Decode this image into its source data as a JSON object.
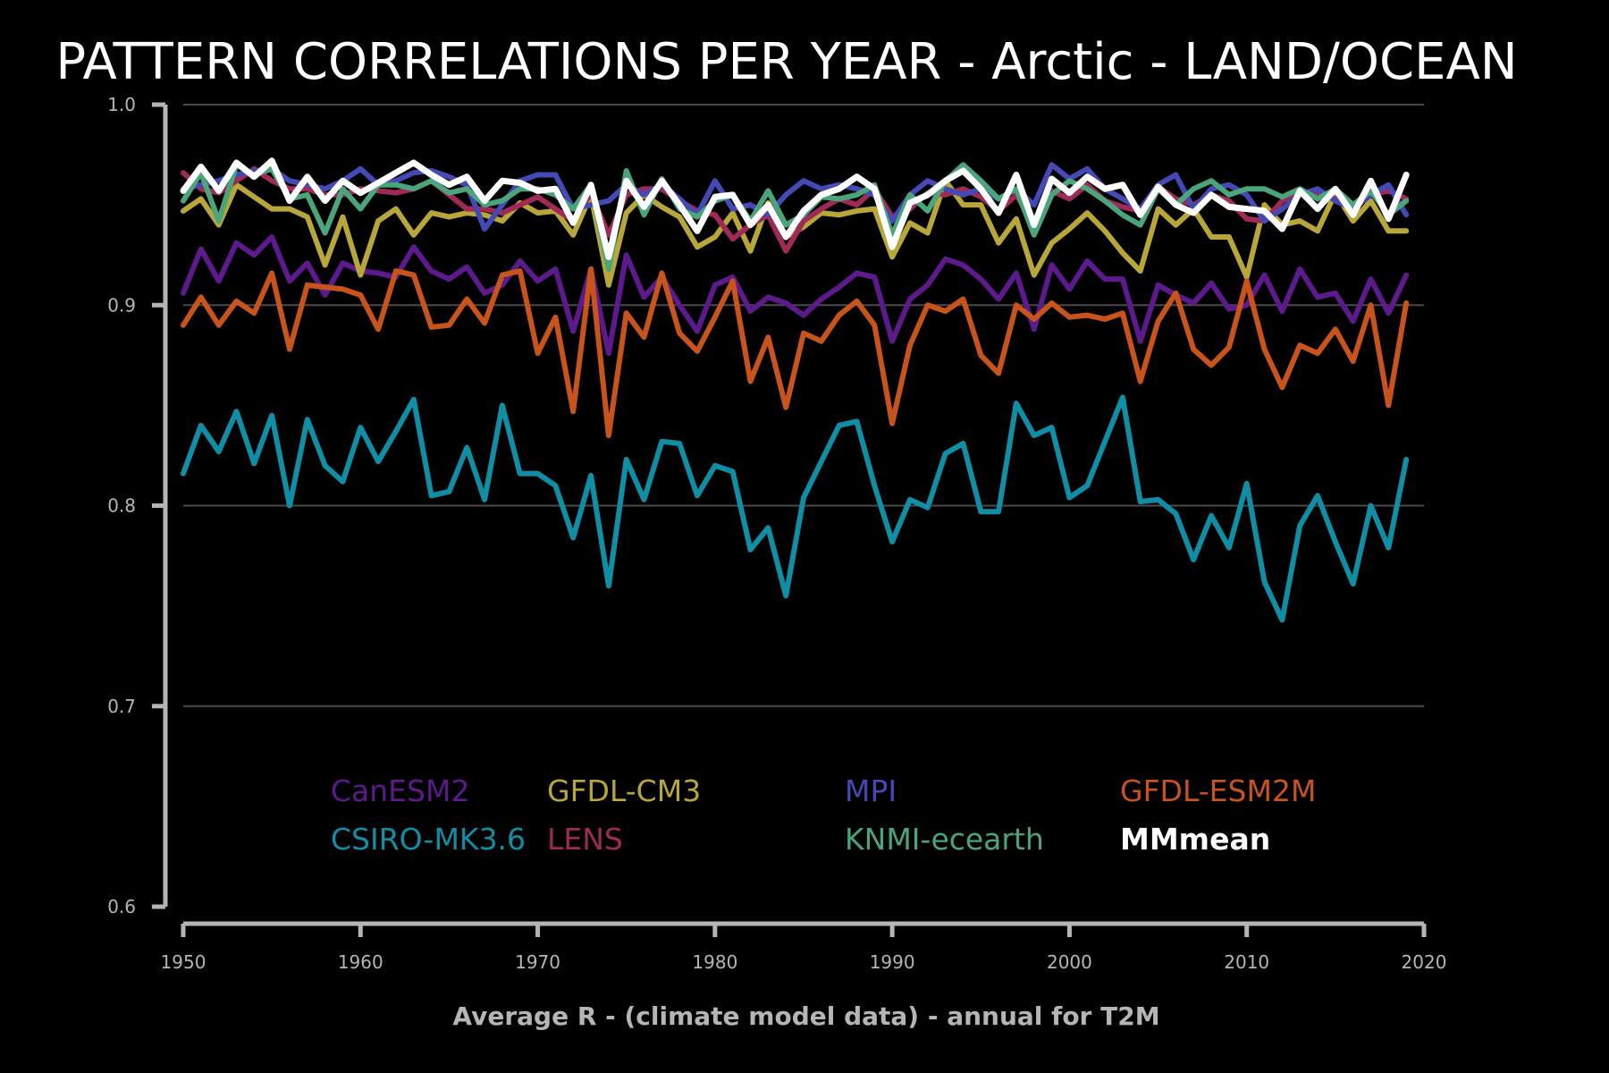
{
  "chart_data": {
    "type": "line",
    "title": "PATTERN CORRELATIONS PER YEAR - Arctic - LAND/OCEAN",
    "xlabel": "Average R - (climate model data) - annual for T2M",
    "ylabel": "",
    "xlim": [
      1950,
      2020
    ],
    "ylim": [
      0.6,
      1.0
    ],
    "xticks": [
      1950,
      1960,
      1970,
      1980,
      1990,
      2000,
      2010,
      2020
    ],
    "xtick_labels": [
      "1950",
      "1960",
      "1970",
      "1980",
      "1990",
      "2000",
      "2010",
      "2020"
    ],
    "yticks": [
      0.6,
      0.7,
      0.8,
      0.9,
      1.0
    ],
    "ytick_labels": [
      "0.6",
      "0.7",
      "0.8",
      "0.9",
      "1.0"
    ],
    "grid": "horizontal",
    "background": "#000000",
    "legend_position": "lower-center",
    "legend_columns": 4,
    "x_start": 1950,
    "series": [
      {
        "name": "CanESM2",
        "color": "#5c1a8c",
        "values": [
          0.906,
          0.928,
          0.912,
          0.931,
          0.925,
          0.934,
          0.912,
          0.921,
          0.905,
          0.921,
          0.917,
          0.916,
          0.914,
          0.929,
          0.917,
          0.913,
          0.919,
          0.906,
          0.91,
          0.922,
          0.912,
          0.918,
          0.887,
          0.918,
          0.876,
          0.925,
          0.904,
          0.914,
          0.9,
          0.887,
          0.91,
          0.914,
          0.897,
          0.904,
          0.901,
          0.895,
          0.903,
          0.909,
          0.916,
          0.914,
          0.882,
          0.903,
          0.91,
          0.923,
          0.92,
          0.913,
          0.903,
          0.916,
          0.888,
          0.92,
          0.908,
          0.922,
          0.913,
          0.913,
          0.882,
          0.91,
          0.905,
          0.901,
          0.911,
          0.898,
          0.9,
          0.915,
          0.897,
          0.918,
          0.904,
          0.906,
          0.892,
          0.913,
          0.896,
          0.915
        ]
      },
      {
        "name": "CSIRO-MK3.6",
        "color": "#0e8fa5",
        "values": [
          0.816,
          0.84,
          0.827,
          0.847,
          0.821,
          0.845,
          0.8,
          0.843,
          0.82,
          0.812,
          0.839,
          0.822,
          0.837,
          0.853,
          0.805,
          0.807,
          0.829,
          0.803,
          0.85,
          0.816,
          0.816,
          0.81,
          0.784,
          0.815,
          0.76,
          0.823,
          0.803,
          0.832,
          0.831,
          0.805,
          0.82,
          0.817,
          0.778,
          0.789,
          0.755,
          0.804,
          0.822,
          0.84,
          0.842,
          0.81,
          0.782,
          0.803,
          0.799,
          0.826,
          0.831,
          0.797,
          0.797,
          0.851,
          0.835,
          0.839,
          0.804,
          0.81,
          0.832,
          0.854,
          0.802,
          0.803,
          0.796,
          0.773,
          0.795,
          0.779,
          0.811,
          0.762,
          0.743,
          0.79,
          0.805,
          0.782,
          0.761,
          0.8,
          0.779,
          0.823
        ]
      },
      {
        "name": "GFDL-CM3",
        "color": "#b8a738",
        "values": [
          0.947,
          0.953,
          0.94,
          0.96,
          0.954,
          0.948,
          0.948,
          0.944,
          0.92,
          0.944,
          0.915,
          0.942,
          0.948,
          0.935,
          0.946,
          0.944,
          0.946,
          0.945,
          0.942,
          0.951,
          0.946,
          0.947,
          0.935,
          0.955,
          0.91,
          0.946,
          0.955,
          0.949,
          0.944,
          0.929,
          0.934,
          0.946,
          0.927,
          0.951,
          0.934,
          0.939,
          0.946,
          0.945,
          0.947,
          0.948,
          0.924,
          0.941,
          0.936,
          0.962,
          0.95,
          0.95,
          0.931,
          0.943,
          0.915,
          0.931,
          0.938,
          0.946,
          0.937,
          0.926,
          0.917,
          0.948,
          0.94,
          0.948,
          0.934,
          0.934,
          0.914,
          0.95,
          0.94,
          0.942,
          0.937,
          0.956,
          0.942,
          0.952,
          0.937,
          0.937
        ]
      },
      {
        "name": "LENS",
        "color": "#9e2a55",
        "values": [
          0.966,
          0.958,
          0.956,
          0.962,
          0.968,
          0.962,
          0.958,
          0.958,
          0.955,
          0.955,
          0.958,
          0.957,
          0.956,
          0.958,
          0.962,
          0.955,
          0.948,
          0.948,
          0.946,
          0.95,
          0.954,
          0.948,
          0.942,
          0.956,
          0.935,
          0.955,
          0.958,
          0.958,
          0.952,
          0.947,
          0.945,
          0.933,
          0.94,
          0.945,
          0.927,
          0.942,
          0.948,
          0.953,
          0.95,
          0.958,
          0.944,
          0.948,
          0.956,
          0.955,
          0.958,
          0.954,
          0.947,
          0.955,
          0.94,
          0.957,
          0.953,
          0.96,
          0.952,
          0.949,
          0.947,
          0.959,
          0.953,
          0.95,
          0.955,
          0.952,
          0.943,
          0.942,
          0.952,
          0.956,
          0.956,
          0.953,
          0.95,
          0.955,
          0.957,
          0.953
        ]
      },
      {
        "name": "MPI",
        "color": "#4549b5",
        "values": [
          0.958,
          0.96,
          0.962,
          0.965,
          0.967,
          0.968,
          0.962,
          0.96,
          0.958,
          0.962,
          0.968,
          0.96,
          0.962,
          0.966,
          0.967,
          0.964,
          0.96,
          0.938,
          0.95,
          0.962,
          0.965,
          0.965,
          0.948,
          0.95,
          0.952,
          0.96,
          0.955,
          0.96,
          0.953,
          0.945,
          0.962,
          0.948,
          0.95,
          0.945,
          0.955,
          0.962,
          0.958,
          0.96,
          0.958,
          0.955,
          0.942,
          0.955,
          0.962,
          0.958,
          0.955,
          0.958,
          0.953,
          0.958,
          0.95,
          0.97,
          0.963,
          0.968,
          0.958,
          0.953,
          0.948,
          0.96,
          0.965,
          0.948,
          0.958,
          0.96,
          0.955,
          0.942,
          0.948,
          0.955,
          0.958,
          0.952,
          0.948,
          0.955,
          0.96,
          0.945
        ]
      },
      {
        "name": "KNMI-ecearth",
        "color": "#4aa57b",
        "values": [
          0.952,
          0.966,
          0.942,
          0.97,
          0.965,
          0.968,
          0.953,
          0.955,
          0.936,
          0.958,
          0.948,
          0.96,
          0.96,
          0.958,
          0.962,
          0.956,
          0.958,
          0.95,
          0.952,
          0.958,
          0.958,
          0.955,
          0.948,
          0.96,
          0.918,
          0.967,
          0.945,
          0.963,
          0.948,
          0.944,
          0.952,
          0.955,
          0.942,
          0.957,
          0.94,
          0.945,
          0.954,
          0.953,
          0.955,
          0.96,
          0.935,
          0.955,
          0.947,
          0.962,
          0.97,
          0.962,
          0.953,
          0.958,
          0.935,
          0.955,
          0.962,
          0.958,
          0.952,
          0.945,
          0.94,
          0.958,
          0.95,
          0.958,
          0.962,
          0.955,
          0.958,
          0.958,
          0.954,
          0.958,
          0.953,
          0.958,
          0.95,
          0.957,
          0.945,
          0.952
        ]
      },
      {
        "name": "GFDL-ESM2M",
        "color": "#c8541c",
        "values": [
          0.89,
          0.904,
          0.89,
          0.902,
          0.896,
          0.916,
          0.878,
          0.91,
          0.909,
          0.908,
          0.905,
          0.888,
          0.917,
          0.915,
          0.889,
          0.89,
          0.903,
          0.891,
          0.915,
          0.917,
          0.876,
          0.894,
          0.847,
          0.918,
          0.835,
          0.896,
          0.884,
          0.916,
          0.886,
          0.877,
          0.894,
          0.912,
          0.862,
          0.884,
          0.849,
          0.886,
          0.882,
          0.895,
          0.902,
          0.89,
          0.841,
          0.88,
          0.9,
          0.897,
          0.903,
          0.875,
          0.866,
          0.9,
          0.893,
          0.901,
          0.894,
          0.895,
          0.893,
          0.896,
          0.862,
          0.892,
          0.906,
          0.878,
          0.87,
          0.879,
          0.912,
          0.878,
          0.859,
          0.88,
          0.876,
          0.888,
          0.872,
          0.9,
          0.85,
          0.901
        ]
      },
      {
        "name": "MMmean",
        "color": "#ffffff",
        "values": [
          0.957,
          0.969,
          0.957,
          0.971,
          0.964,
          0.972,
          0.952,
          0.964,
          0.952,
          0.962,
          0.956,
          0.961,
          0.966,
          0.971,
          0.965,
          0.96,
          0.964,
          0.952,
          0.962,
          0.961,
          0.957,
          0.958,
          0.941,
          0.96,
          0.924,
          0.962,
          0.949,
          0.962,
          0.95,
          0.937,
          0.954,
          0.955,
          0.94,
          0.95,
          0.934,
          0.947,
          0.955,
          0.958,
          0.964,
          0.958,
          0.929,
          0.951,
          0.955,
          0.962,
          0.967,
          0.958,
          0.946,
          0.965,
          0.94,
          0.963,
          0.956,
          0.964,
          0.958,
          0.96,
          0.945,
          0.959,
          0.95,
          0.946,
          0.955,
          0.949,
          0.948,
          0.947,
          0.938,
          0.957,
          0.948,
          0.958,
          0.945,
          0.962,
          0.943,
          0.965
        ]
      }
    ]
  }
}
